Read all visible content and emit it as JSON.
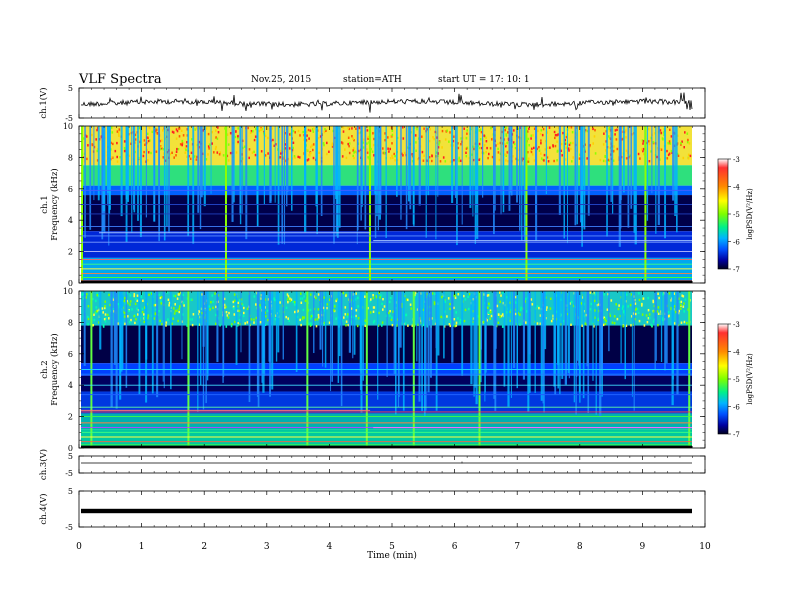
{
  "header": {
    "title": "VLF  Spectra",
    "date": "Nov.25, 2015",
    "station": "station=ATH",
    "start_ut": "start  UT  =    17: 10: 1"
  },
  "colorbar": {
    "label": "logPSD(V²/Hz)",
    "ticks": [
      "-3",
      "-4",
      "-5",
      "-6",
      "-7"
    ],
    "colors": [
      "#ff3030",
      "#ff8a00",
      "#ffff00",
      "#7dff00",
      "#00f08a",
      "#00b4ff",
      "#0050ff",
      "#0000a0",
      "#000020"
    ]
  },
  "chart_data": [
    {
      "type": "line",
      "name": "ch1-waveform",
      "ylabel": "ch.1(V)",
      "ylim": [
        -5,
        5
      ],
      "y_ticks": [
        "5",
        "-5"
      ],
      "xlim": [
        0,
        10
      ]
    },
    {
      "type": "heatmap",
      "name": "ch1-spectrogram",
      "ylabel_channel": "ch.1",
      "ylabel": "Frequency  (kHz)",
      "ylim": [
        0,
        10
      ],
      "y_ticks": [
        "0",
        "2",
        "4",
        "6",
        "8",
        "10"
      ],
      "xlim": [
        0,
        10
      ],
      "color_scale": [
        -7,
        -3
      ]
    },
    {
      "type": "heatmap",
      "name": "ch2-spectrogram",
      "ylabel_channel": "ch.2",
      "ylabel": "Frequency  (kHz)",
      "ylim": [
        0,
        10
      ],
      "y_ticks": [
        "0",
        "2",
        "4",
        "6",
        "8",
        "10"
      ],
      "xlim": [
        0,
        10
      ],
      "color_scale": [
        -7,
        -3
      ]
    },
    {
      "type": "line",
      "name": "ch3-waveform",
      "ylabel": "ch.3(V)",
      "ylim": [
        -5,
        5
      ],
      "y_ticks": [
        "5",
        "-5"
      ],
      "xlim": [
        0,
        10
      ]
    },
    {
      "type": "line",
      "name": "ch4-waveform",
      "ylabel": "ch.4(V)",
      "ylim": [
        -5,
        5
      ],
      "y_ticks": [
        "5",
        "-5"
      ],
      "xlim": [
        0,
        10
      ]
    }
  ],
  "x_axis": {
    "label": "Time  (min)",
    "ticks": [
      "0",
      "1",
      "2",
      "3",
      "4",
      "5",
      "6",
      "7",
      "8",
      "9",
      "10"
    ]
  }
}
